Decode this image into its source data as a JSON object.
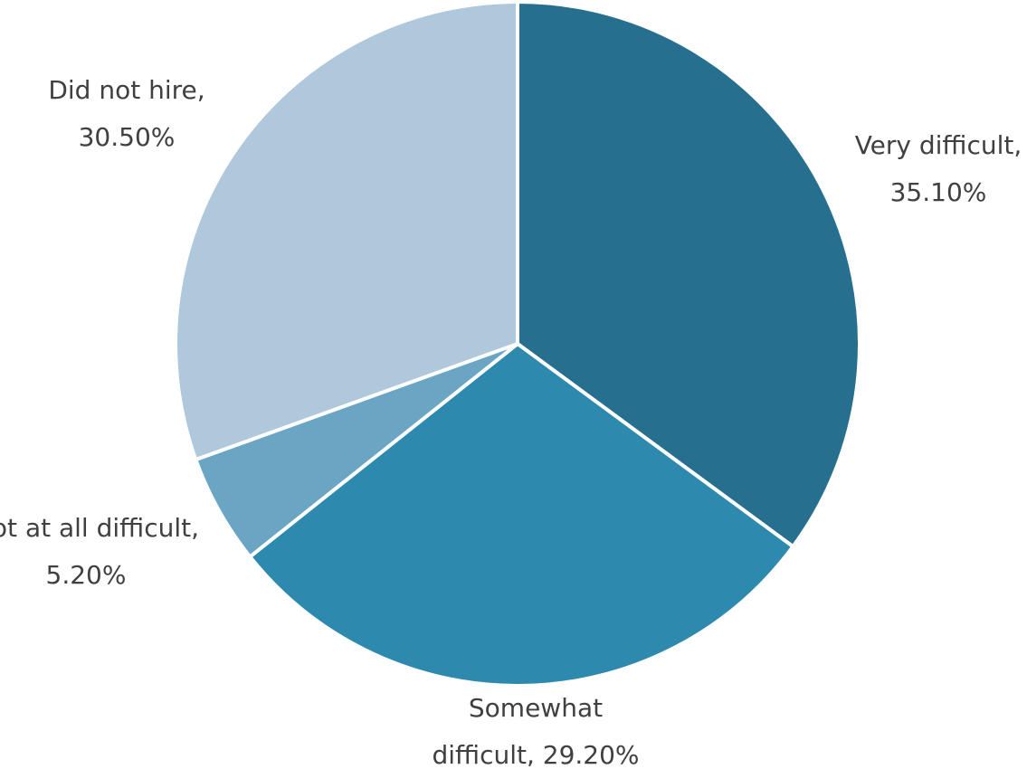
{
  "chart_data": {
    "type": "pie",
    "title": "",
    "slices": [
      {
        "label_lines": [
          "Very difficult,",
          "35.10%"
        ],
        "value": 35.1,
        "color": "#276f8f"
      },
      {
        "label_lines": [
          "Somewhat",
          "difficult, 29.20%"
        ],
        "value": 29.2,
        "color": "#2e89ae"
      },
      {
        "label_lines": [
          "Not at all difficult,",
          "5.20%"
        ],
        "value": 5.2,
        "color": "#6aa5c4"
      },
      {
        "label_lines": [
          "Did not hire,",
          "30.50%"
        ],
        "value": 30.5,
        "color": "#afc8dc"
      }
    ],
    "legend": "none",
    "start": "12 o'clock",
    "direction": "clockwise"
  }
}
